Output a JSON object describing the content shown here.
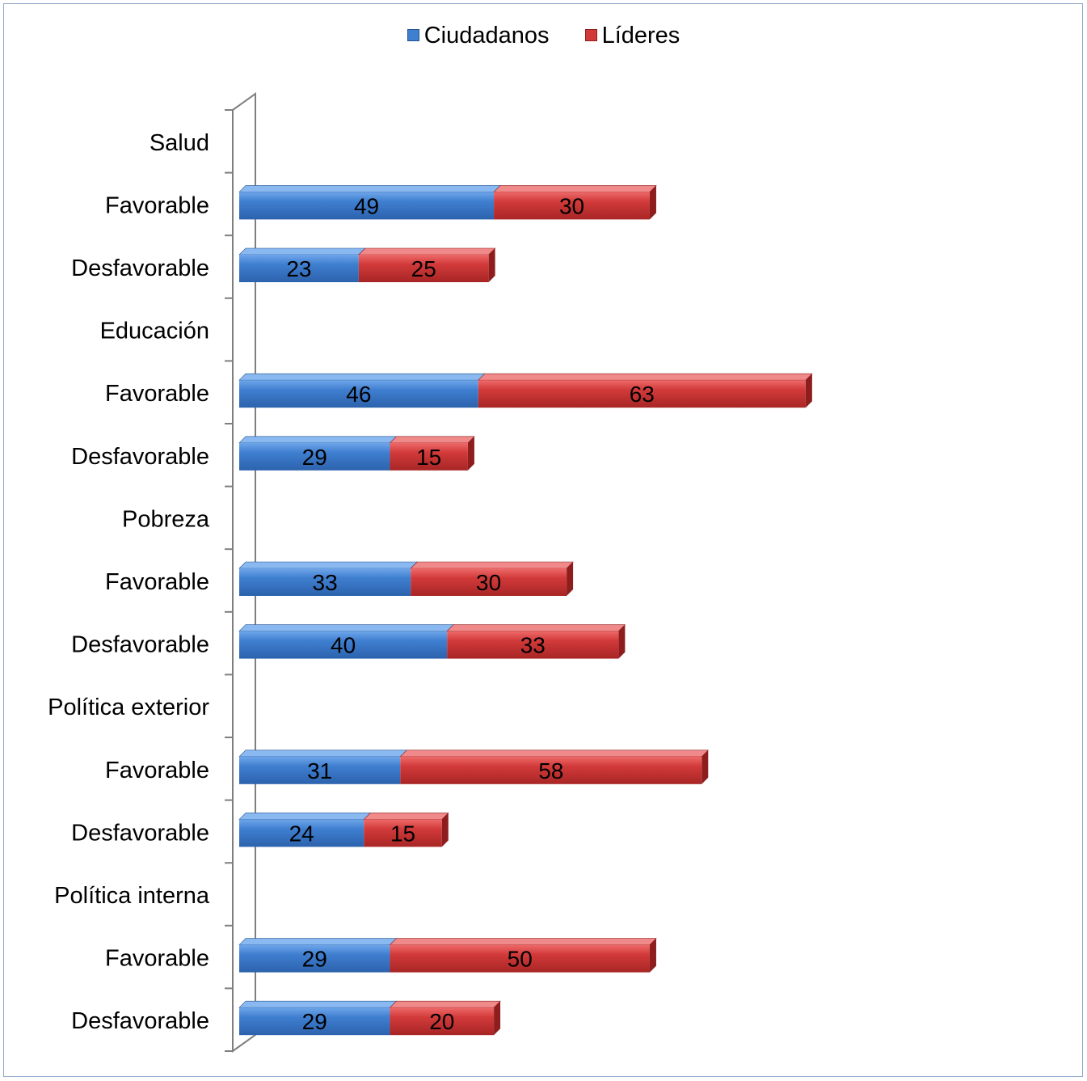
{
  "chart_data": {
    "type": "bar",
    "orientation": "horizontal",
    "stacked": true,
    "categories": [
      "Salud",
      "Favorable",
      "Desfavorable",
      "Educación",
      "Favorable",
      "Desfavorable",
      "Pobreza",
      "Favorable",
      "Desfavorable",
      "Política exterior",
      "Favorable",
      "Desfavorable",
      "Política interna",
      "Favorable",
      "Desfavorable"
    ],
    "series": [
      {
        "name": "Ciudadanos",
        "color": "#3f7fd0",
        "values": [
          null,
          49,
          23,
          null,
          46,
          29,
          null,
          33,
          40,
          null,
          31,
          24,
          null,
          29,
          29
        ]
      },
      {
        "name": "Líderes",
        "color": "#d23a3a",
        "values": [
          null,
          30,
          25,
          null,
          63,
          15,
          null,
          30,
          33,
          null,
          58,
          15,
          null,
          50,
          20
        ]
      }
    ],
    "xlim": [
      0,
      110
    ],
    "grid": false,
    "legend_position": "top"
  }
}
